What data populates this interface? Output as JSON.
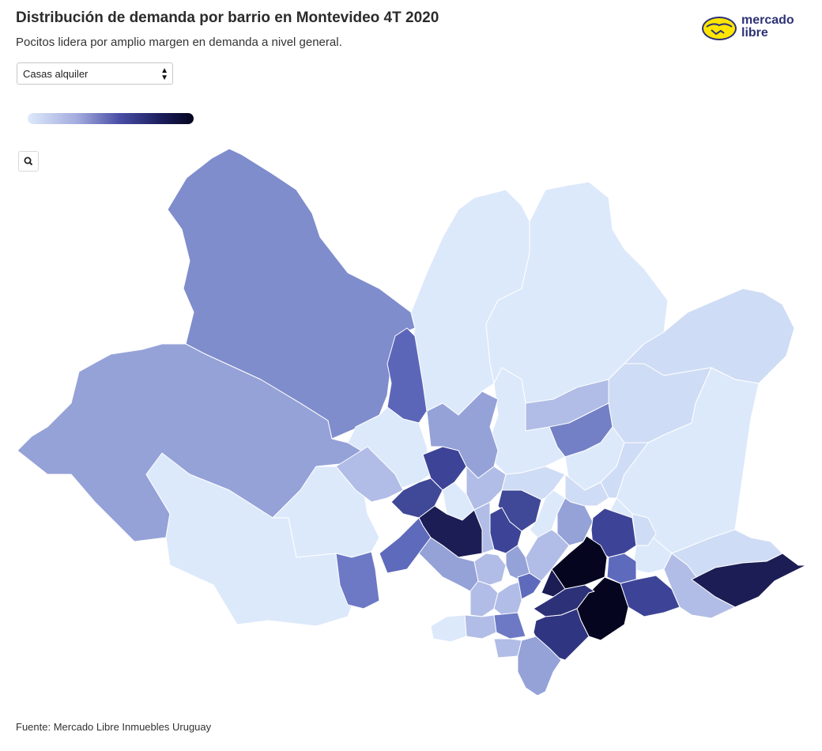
{
  "header": {
    "title": "Distribución de demanda por barrio en Montevideo 4T 2020",
    "subtitle": "Pocitos lidera por amplio margen en demanda a nivel general."
  },
  "logo": {
    "line1": "mercado",
    "line2": "libre",
    "brand_yellow": "#ffe600",
    "brand_blue": "#2d3277"
  },
  "filter": {
    "selected": "Casas alquiler"
  },
  "legend": {
    "color_low": "#dde9fb",
    "color_high": "#05051f"
  },
  "zoom": {
    "icon": "search-icon"
  },
  "footer": {
    "source": "Fuente: Mercado Libre Inmuebles Uruguay"
  }
}
